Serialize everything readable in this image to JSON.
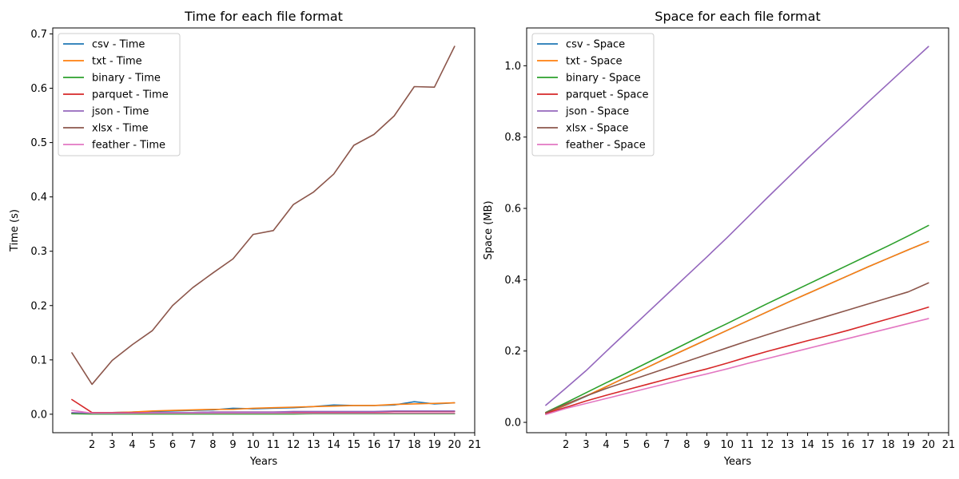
{
  "chart_data": [
    {
      "type": "line",
      "title": "Time for each file format",
      "xlabel": "Years",
      "ylabel": "Time (s)",
      "x": [
        1,
        2,
        3,
        4,
        5,
        6,
        7,
        8,
        9,
        10,
        11,
        12,
        13,
        14,
        15,
        16,
        17,
        18,
        19,
        20
      ],
      "xticks": [
        2,
        3,
        4,
        5,
        6,
        7,
        8,
        9,
        10,
        11,
        12,
        13,
        14,
        15,
        16,
        17,
        18,
        19,
        20,
        21
      ],
      "xlim": [
        0.05,
        21.0
      ],
      "yticks": [
        0.0,
        0.1,
        0.2,
        0.3,
        0.4,
        0.5,
        0.6,
        0.7
      ],
      "ytick_labels": [
        "0.0",
        "0.1",
        "0.2",
        "0.3",
        "0.4",
        "0.5",
        "0.6",
        "0.7"
      ],
      "ylim": [
        -0.034,
        0.711
      ],
      "legend_position": "top-left",
      "series": [
        {
          "name": "csv - Time",
          "color": "#1f77b4",
          "values": [
            0.002,
            0.001,
            0.003,
            0.004,
            0.005,
            0.006,
            0.007,
            0.008,
            0.011,
            0.01,
            0.011,
            0.012,
            0.014,
            0.017,
            0.016,
            0.016,
            0.017,
            0.023,
            0.019,
            0.021
          ]
        },
        {
          "name": "txt - Time",
          "color": "#ff7f0e",
          "values": [
            0.002,
            0.002,
            0.003,
            0.004,
            0.006,
            0.007,
            0.008,
            0.009,
            0.009,
            0.011,
            0.012,
            0.013,
            0.014,
            0.015,
            0.016,
            0.016,
            0.018,
            0.019,
            0.02,
            0.021
          ]
        },
        {
          "name": "binary - Time",
          "color": "#2ca02c",
          "values": [
            0.001,
            0.0005,
            0.0005,
            0.0005,
            0.0005,
            0.0005,
            0.0005,
            0.0005,
            0.0005,
            0.0005,
            0.0005,
            0.0005,
            0.001,
            0.001,
            0.001,
            0.001,
            0.001,
            0.001,
            0.001,
            0.001
          ]
        },
        {
          "name": "parquet - Time",
          "color": "#d62728",
          "values": [
            0.027,
            0.003,
            0.003,
            0.003,
            0.003,
            0.003,
            0.003,
            0.004,
            0.004,
            0.004,
            0.004,
            0.004,
            0.004,
            0.004,
            0.004,
            0.004,
            0.005,
            0.005,
            0.005,
            0.005
          ]
        },
        {
          "name": "json - Time",
          "color": "#9467bd",
          "values": [
            0.003,
            0.002,
            0.002,
            0.002,
            0.003,
            0.003,
            0.003,
            0.004,
            0.004,
            0.004,
            0.004,
            0.005,
            0.005,
            0.005,
            0.005,
            0.005,
            0.006,
            0.006,
            0.006,
            0.006
          ]
        },
        {
          "name": "xlsx - Time",
          "color": "#8c564b",
          "values": [
            0.113,
            0.055,
            0.099,
            0.128,
            0.154,
            0.2,
            0.233,
            0.26,
            0.286,
            0.331,
            0.338,
            0.386,
            0.409,
            0.442,
            0.495,
            0.515,
            0.549,
            0.603,
            0.602,
            0.677
          ]
        },
        {
          "name": "feather - Time",
          "color": "#e377c2",
          "values": [
            0.007,
            0.002,
            0.002,
            0.002,
            0.002,
            0.002,
            0.002,
            0.002,
            0.002,
            0.002,
            0.002,
            0.002,
            0.002,
            0.002,
            0.002,
            0.002,
            0.002,
            0.002,
            0.002,
            0.002
          ]
        }
      ]
    },
    {
      "type": "line",
      "title": "Space for each file format",
      "xlabel": "Years",
      "ylabel": "Space (MB)",
      "x": [
        1,
        2,
        3,
        4,
        5,
        6,
        7,
        8,
        9,
        10,
        11,
        12,
        13,
        14,
        15,
        16,
        17,
        18,
        19,
        20
      ],
      "xticks": [
        2,
        3,
        4,
        5,
        6,
        7,
        8,
        9,
        10,
        11,
        12,
        13,
        14,
        15,
        16,
        17,
        18,
        19,
        20,
        21
      ],
      "xlim": [
        0.05,
        21.0
      ],
      "yticks": [
        0.0,
        0.2,
        0.4,
        0.6,
        0.8,
        1.0
      ],
      "ytick_labels": [
        "0.0",
        "0.2",
        "0.4",
        "0.6",
        "0.8",
        "1.0"
      ],
      "ylim": [
        -0.029,
        1.106
      ],
      "legend_position": "top-left",
      "series": [
        {
          "name": "csv - Space",
          "color": "#1f77b4",
          "values": [
            0.025,
            0.048,
            0.073,
            0.1,
            0.127,
            0.153,
            0.18,
            0.206,
            0.232,
            0.258,
            0.284,
            0.31,
            0.336,
            0.361,
            0.386,
            0.411,
            0.436,
            0.46,
            0.484,
            0.507
          ]
        },
        {
          "name": "txt - Space",
          "color": "#ff7f0e",
          "values": [
            0.025,
            0.049,
            0.074,
            0.1,
            0.127,
            0.153,
            0.18,
            0.206,
            0.232,
            0.258,
            0.284,
            0.31,
            0.336,
            0.361,
            0.386,
            0.411,
            0.436,
            0.46,
            0.484,
            0.507
          ]
        },
        {
          "name": "binary - Space",
          "color": "#2ca02c",
          "values": [
            0.028,
            0.055,
            0.083,
            0.111,
            0.138,
            0.166,
            0.194,
            0.222,
            0.25,
            0.277,
            0.305,
            0.333,
            0.36,
            0.387,
            0.414,
            0.441,
            0.468,
            0.495,
            0.523,
            0.552
          ]
        },
        {
          "name": "parquet - Space",
          "color": "#d62728",
          "values": [
            0.025,
            0.042,
            0.06,
            0.076,
            0.091,
            0.106,
            0.121,
            0.136,
            0.15,
            0.166,
            0.183,
            0.199,
            0.214,
            0.229,
            0.243,
            0.258,
            0.274,
            0.29,
            0.306,
            0.323
          ]
        },
        {
          "name": "json - Space",
          "color": "#9467bd",
          "values": [
            0.048,
            0.096,
            0.145,
            0.199,
            0.252,
            0.305,
            0.358,
            0.411,
            0.464,
            0.518,
            0.574,
            0.63,
            0.685,
            0.74,
            0.793,
            0.845,
            0.898,
            0.95,
            1.002,
            1.054
          ]
        },
        {
          "name": "xlsx - Space",
          "color": "#8c564b",
          "values": [
            0.027,
            0.051,
            0.074,
            0.095,
            0.114,
            0.133,
            0.152,
            0.171,
            0.19,
            0.209,
            0.228,
            0.246,
            0.264,
            0.281,
            0.298,
            0.315,
            0.332,
            0.349,
            0.366,
            0.391
          ]
        },
        {
          "name": "feather - Space",
          "color": "#e377c2",
          "values": [
            0.022,
            0.039,
            0.053,
            0.067,
            0.081,
            0.095,
            0.109,
            0.123,
            0.136,
            0.15,
            0.165,
            0.179,
            0.193,
            0.207,
            0.221,
            0.235,
            0.249,
            0.263,
            0.277,
            0.291
          ]
        }
      ]
    }
  ]
}
